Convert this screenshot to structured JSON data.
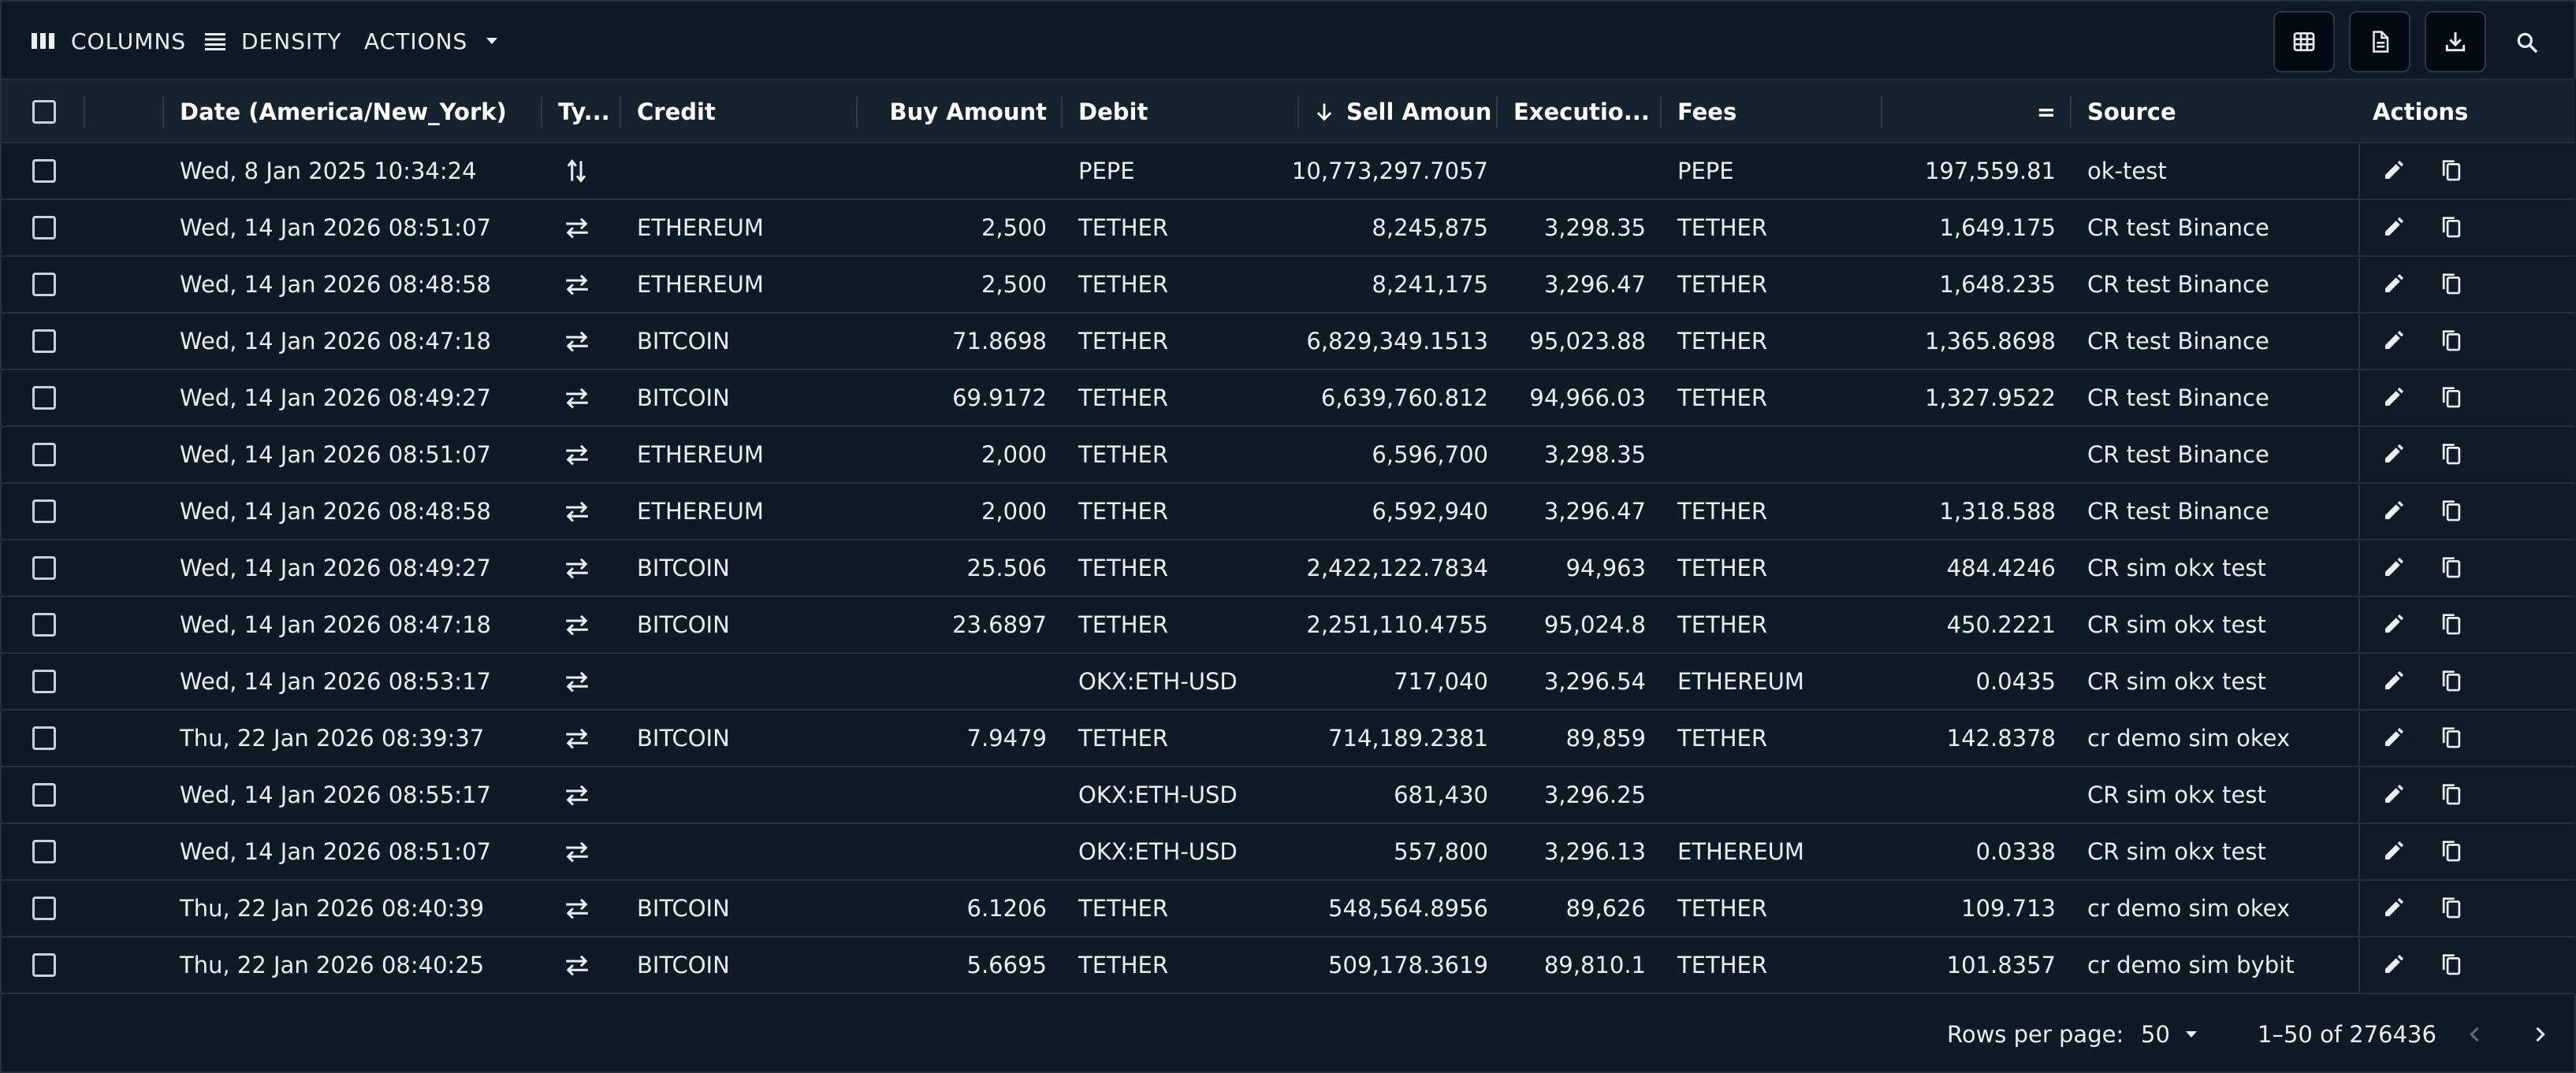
{
  "toolbar": {
    "columns_label": "COLUMNS",
    "density_label": "DENSITY",
    "actions_label": "ACTIONS"
  },
  "headers": {
    "date": "Date (America/New_York)",
    "type": "Ty...",
    "credit": "Credit",
    "buy_amount": "Buy Amount",
    "debit": "Debit",
    "sell_amount": "Sell Amoun",
    "execution": "Executio...",
    "fees": "Fees",
    "fee_amount": "=",
    "source": "Source",
    "actions": "Actions"
  },
  "rows": [
    {
      "date": "Wed, 8 Jan 2025 10:34:24",
      "type_icon": "arrows-up-down-icon",
      "credit": "",
      "buy": "",
      "debit": "PEPE",
      "sell": "10,773,297.7057",
      "exec": "",
      "fees": "PEPE",
      "fee_amt": "197,559.81",
      "source": "ok-test"
    },
    {
      "date": "Wed, 14 Jan 2026 08:51:07",
      "type_icon": "swap-horiz-icon",
      "credit": "ETHEREUM",
      "buy": "2,500",
      "debit": "TETHER",
      "sell": "8,245,875",
      "exec": "3,298.35",
      "fees": "TETHER",
      "fee_amt": "1,649.175",
      "source": "CR test Binance"
    },
    {
      "date": "Wed, 14 Jan 2026 08:48:58",
      "type_icon": "swap-horiz-icon",
      "credit": "ETHEREUM",
      "buy": "2,500",
      "debit": "TETHER",
      "sell": "8,241,175",
      "exec": "3,296.47",
      "fees": "TETHER",
      "fee_amt": "1,648.235",
      "source": "CR test Binance"
    },
    {
      "date": "Wed, 14 Jan 2026 08:47:18",
      "type_icon": "swap-horiz-icon",
      "credit": "BITCOIN",
      "buy": "71.8698",
      "debit": "TETHER",
      "sell": "6,829,349.1513",
      "exec": "95,023.88",
      "fees": "TETHER",
      "fee_amt": "1,365.8698",
      "source": "CR test Binance"
    },
    {
      "date": "Wed, 14 Jan 2026 08:49:27",
      "type_icon": "swap-horiz-icon",
      "credit": "BITCOIN",
      "buy": "69.9172",
      "debit": "TETHER",
      "sell": "6,639,760.812",
      "exec": "94,966.03",
      "fees": "TETHER",
      "fee_amt": "1,327.9522",
      "source": "CR test Binance"
    },
    {
      "date": "Wed, 14 Jan 2026 08:51:07",
      "type_icon": "swap-horiz-icon",
      "credit": "ETHEREUM",
      "buy": "2,000",
      "debit": "TETHER",
      "sell": "6,596,700",
      "exec": "3,298.35",
      "fees": "",
      "fee_amt": "",
      "source": "CR test Binance"
    },
    {
      "date": "Wed, 14 Jan 2026 08:48:58",
      "type_icon": "swap-horiz-icon",
      "credit": "ETHEREUM",
      "buy": "2,000",
      "debit": "TETHER",
      "sell": "6,592,940",
      "exec": "3,296.47",
      "fees": "TETHER",
      "fee_amt": "1,318.588",
      "source": "CR test Binance"
    },
    {
      "date": "Wed, 14 Jan 2026 08:49:27",
      "type_icon": "swap-horiz-icon",
      "credit": "BITCOIN",
      "buy": "25.506",
      "debit": "TETHER",
      "sell": "2,422,122.7834",
      "exec": "94,963",
      "fees": "TETHER",
      "fee_amt": "484.4246",
      "source": "CR sim okx test"
    },
    {
      "date": "Wed, 14 Jan 2026 08:47:18",
      "type_icon": "swap-horiz-icon",
      "credit": "BITCOIN",
      "buy": "23.6897",
      "debit": "TETHER",
      "sell": "2,251,110.4755",
      "exec": "95,024.8",
      "fees": "TETHER",
      "fee_amt": "450.2221",
      "source": "CR sim okx test"
    },
    {
      "date": "Wed, 14 Jan 2026 08:53:17",
      "type_icon": "swap-horiz-icon",
      "credit": "",
      "buy": "",
      "debit": "OKX:ETH-USD",
      "sell": "717,040",
      "exec": "3,296.54",
      "fees": "ETHEREUM",
      "fee_amt": "0.0435",
      "source": "CR sim okx test"
    },
    {
      "date": "Thu, 22 Jan 2026 08:39:37",
      "type_icon": "swap-horiz-icon",
      "credit": "BITCOIN",
      "buy": "7.9479",
      "debit": "TETHER",
      "sell": "714,189.2381",
      "exec": "89,859",
      "fees": "TETHER",
      "fee_amt": "142.8378",
      "source": "cr demo sim okex"
    },
    {
      "date": "Wed, 14 Jan 2026 08:55:17",
      "type_icon": "swap-horiz-icon",
      "credit": "",
      "buy": "",
      "debit": "OKX:ETH-USD",
      "sell": "681,430",
      "exec": "3,296.25",
      "fees": "",
      "fee_amt": "",
      "source": "CR sim okx test"
    },
    {
      "date": "Wed, 14 Jan 2026 08:51:07",
      "type_icon": "swap-horiz-icon",
      "credit": "",
      "buy": "",
      "debit": "OKX:ETH-USD",
      "sell": "557,800",
      "exec": "3,296.13",
      "fees": "ETHEREUM",
      "fee_amt": "0.0338",
      "source": "CR sim okx test"
    },
    {
      "date": "Thu, 22 Jan 2026 08:40:39",
      "type_icon": "swap-horiz-icon",
      "credit": "BITCOIN",
      "buy": "6.1206",
      "debit": "TETHER",
      "sell": "548,564.8956",
      "exec": "89,626",
      "fees": "TETHER",
      "fee_amt": "109.713",
      "source": "cr demo sim okex"
    },
    {
      "date": "Thu, 22 Jan 2026 08:40:25",
      "type_icon": "swap-horiz-icon",
      "credit": "BITCOIN",
      "buy": "5.6695",
      "debit": "TETHER",
      "sell": "509,178.3619",
      "exec": "89,810.1",
      "fees": "TETHER",
      "fee_amt": "101.8357",
      "source": "cr demo sim bybit"
    }
  ],
  "footer": {
    "rows_per_page_label": "Rows per page:",
    "rows_per_page_value": "50",
    "range_label": "1–50 of 276436"
  }
}
